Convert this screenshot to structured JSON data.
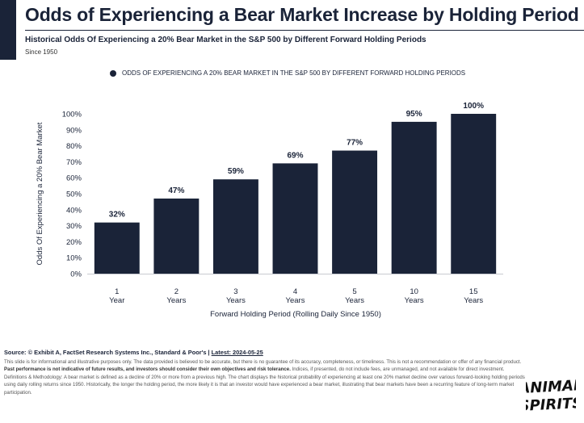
{
  "header": {
    "title": "Odds of Experiencing a Bear Market Increase by Holding Period",
    "subtitle": "Historical Odds Of Experiencing a 20% Bear Market in the S&P 500 by Different Forward Holding Periods",
    "since": "Since 1950"
  },
  "chart_data": {
    "type": "bar",
    "categories": [
      "1 Year",
      "2 Years",
      "3 Years",
      "4 Years",
      "5 Years",
      "10 Years",
      "15 Years"
    ],
    "category_lines": [
      [
        "1",
        "Year"
      ],
      [
        "2",
        "Years"
      ],
      [
        "3",
        "Years"
      ],
      [
        "4",
        "Years"
      ],
      [
        "5",
        "Years"
      ],
      [
        "10",
        "Years"
      ],
      [
        "15",
        "Years"
      ]
    ],
    "values": [
      32,
      47,
      59,
      69,
      77,
      95,
      100
    ],
    "data_labels": [
      "32%",
      "47%",
      "59%",
      "69%",
      "77%",
      "95%",
      "100%"
    ],
    "legend": "ODDS OF EXPERIENCING A 20% BEAR MARKET IN THE S&P 500 BY DIFFERENT FORWARD HOLDING PERIODS",
    "xlabel": "Forward Holding Period (Rolling Daily Since 1950)",
    "ylabel": "Odds Of Experiencing a 20% Bear Market",
    "ylim": [
      0,
      100
    ],
    "yticks": [
      "0%",
      "10%",
      "20%",
      "30%",
      "40%",
      "50%",
      "60%",
      "70%",
      "80%",
      "90%",
      "100%"
    ],
    "grid": false,
    "bar_color": "#1a2338"
  },
  "footer": {
    "source_prefix": "Source: © Exhibit A, FactSet Research Systems Inc., Standard & Poor's | ",
    "source_date": "Latest: 2024-05-25",
    "disclaimer_1": "This slide is for informational and illustrative purposes only. The data provided is believed to be accurate, but there is no guarantee of its accuracy, completeness, or timeliness. This is not a recommendation or offer of any financial product. ",
    "disclaimer_bold": "Past performance is not indicative of future results, and investors should consider their own objectives and risk tolerance.",
    "disclaimer_2": " Indices, if presented, do not include fees, are unmanaged, and not available for direct investment. Definitions & Methodology: A bear market is defined as a decline of 20% or more from a previous high. The chart displays the historical probability of experiencing at least one 20% market decline over various forward-looking holding periods using daily rolling returns since 1950. Historically, the longer the holding period, the more likely it is that an investor would have experienced a bear market, illustrating that bear markets have been a recurring feature of long-term market participation."
  },
  "logo": {
    "line1": "ANIMAL",
    "line2": "SPIRITS"
  }
}
